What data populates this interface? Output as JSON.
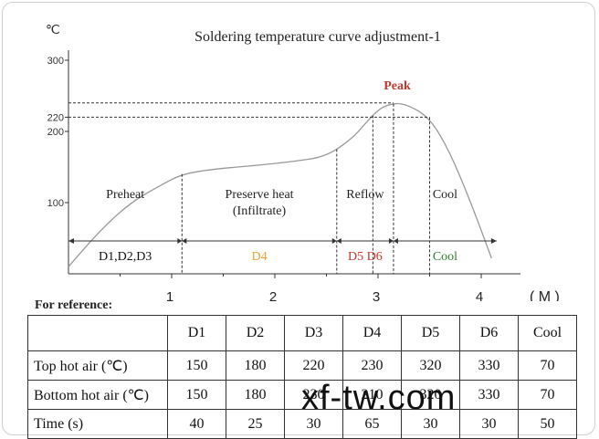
{
  "chart_data": {
    "type": "line",
    "title": "Soldering temperature curve adjustment-1",
    "ylabel": "℃",
    "xlabel": "( M )",
    "y_ticks": [
      100,
      200,
      220,
      300
    ],
    "x_ticks": [
      1,
      2,
      3,
      4
    ],
    "ylim": [
      0,
      310
    ],
    "xlim": [
      0,
      4.5
    ],
    "series": [
      {
        "x": [
          0,
          0.3,
          0.6,
          0.9,
          1.1,
          1.4,
          1.8,
          2.2,
          2.5,
          2.75,
          2.9,
          3.0,
          3.1,
          3.25,
          3.5,
          3.7,
          3.9,
          4.1
        ],
        "y": [
          10,
          60,
          100,
          125,
          140,
          147,
          152,
          158,
          165,
          190,
          215,
          230,
          238,
          240,
          220,
          170,
          100,
          22
        ]
      }
    ],
    "annotations": {
      "peak_label": "Peak",
      "peak_color": "#c0392b",
      "peak_temp": 240,
      "ref_temp": 220
    },
    "phases": [
      {
        "label": "Preheat",
        "x_start": 0,
        "x_end": 1.1
      },
      {
        "label": "Preserve heat",
        "sublabel": "(Infiltrate)",
        "x_start": 1.1,
        "x_end": 2.6
      },
      {
        "label": "Reflow",
        "x_start": 2.6,
        "x_end": 3.15
      },
      {
        "label": "Cool",
        "x_start": 3.15,
        "x_end": 4.15
      }
    ],
    "ranges": [
      {
        "label": "D1,D2,D3",
        "color": "#111111",
        "x_start": 0,
        "x_end": 1.1
      },
      {
        "label": "D4",
        "color": "#f0a030",
        "x_start": 1.1,
        "x_end": 2.6
      },
      {
        "label": "D5 D6",
        "color": "#c0392b",
        "x_start": 2.6,
        "x_end": 3.15
      },
      {
        "label": "Cool",
        "color": "#2e7d32",
        "x_start": 3.15,
        "x_end": 4.15
      }
    ],
    "guides_x": [
      1.1,
      2.6,
      2.95,
      3.15,
      3.5
    ]
  },
  "reference": {
    "label": "For reference:",
    "headers": [
      "",
      "D1",
      "D2",
      "D3",
      "D4",
      "D5",
      "D6",
      "Cool"
    ],
    "rows": [
      {
        "label": "Top hot air (℃)",
        "values": [
          "150",
          "180",
          "220",
          "230",
          "320",
          "330",
          "70"
        ]
      },
      {
        "label": "Bottom hot air (℃)",
        "values": [
          "150",
          "180",
          "230",
          "210",
          "320",
          "330",
          "70"
        ]
      },
      {
        "label": "Time (s)",
        "values": [
          "40",
          "25",
          "30",
          "65",
          "30",
          "30",
          "50"
        ]
      }
    ]
  },
  "watermark": "xf-tw.com"
}
